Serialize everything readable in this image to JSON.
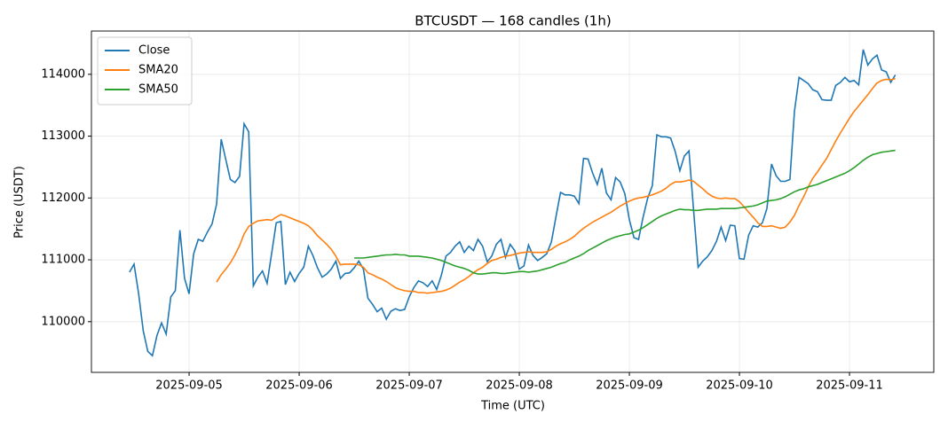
{
  "chart_data": {
    "type": "line",
    "title": "BTCUSDT — 168 candles (1h)",
    "x_label": "Time (UTC)",
    "y_label": "Price (USDT)",
    "grid": true,
    "legend": "upper left",
    "x": [
      "2025-09-04 11:00",
      "2025-09-04 12:00",
      "2025-09-04 13:00",
      "2025-09-04 14:00",
      "2025-09-04 15:00",
      "2025-09-04 16:00",
      "2025-09-04 17:00",
      "2025-09-04 18:00",
      "2025-09-04 19:00",
      "2025-09-04 20:00",
      "2025-09-04 21:00",
      "2025-09-04 22:00",
      "2025-09-04 23:00",
      "2025-09-05 00:00",
      "2025-09-05 01:00",
      "2025-09-05 02:00",
      "2025-09-05 03:00",
      "2025-09-05 04:00",
      "2025-09-05 05:00",
      "2025-09-05 06:00",
      "2025-09-05 07:00",
      "2025-09-05 08:00",
      "2025-09-05 09:00",
      "2025-09-05 10:00",
      "2025-09-05 11:00",
      "2025-09-05 12:00",
      "2025-09-05 13:00",
      "2025-09-05 14:00",
      "2025-09-05 15:00",
      "2025-09-05 16:00",
      "2025-09-05 17:00",
      "2025-09-05 18:00",
      "2025-09-05 19:00",
      "2025-09-05 20:00",
      "2025-09-05 21:00",
      "2025-09-05 22:00",
      "2025-09-05 23:00",
      "2025-09-06 00:00",
      "2025-09-06 01:00",
      "2025-09-06 02:00",
      "2025-09-06 03:00",
      "2025-09-06 04:00",
      "2025-09-06 05:00",
      "2025-09-06 06:00",
      "2025-09-06 07:00",
      "2025-09-06 08:00",
      "2025-09-06 09:00",
      "2025-09-06 10:00",
      "2025-09-06 11:00",
      "2025-09-06 12:00",
      "2025-09-06 13:00",
      "2025-09-06 14:00",
      "2025-09-06 15:00",
      "2025-09-06 16:00",
      "2025-09-06 17:00",
      "2025-09-06 18:00",
      "2025-09-06 19:00",
      "2025-09-06 20:00",
      "2025-09-06 21:00",
      "2025-09-06 22:00",
      "2025-09-06 23:00",
      "2025-09-07 00:00",
      "2025-09-07 01:00",
      "2025-09-07 02:00",
      "2025-09-07 03:00",
      "2025-09-07 04:00",
      "2025-09-07 05:00",
      "2025-09-07 06:00",
      "2025-09-07 07:00",
      "2025-09-07 08:00",
      "2025-09-07 09:00",
      "2025-09-07 10:00",
      "2025-09-07 11:00",
      "2025-09-07 12:00",
      "2025-09-07 13:00",
      "2025-09-07 14:00",
      "2025-09-07 15:00",
      "2025-09-07 16:00",
      "2025-09-07 17:00",
      "2025-09-07 18:00",
      "2025-09-07 19:00",
      "2025-09-07 20:00",
      "2025-09-07 21:00",
      "2025-09-07 22:00",
      "2025-09-07 23:00",
      "2025-09-08 00:00",
      "2025-09-08 01:00",
      "2025-09-08 02:00",
      "2025-09-08 03:00",
      "2025-09-08 04:00",
      "2025-09-08 05:00",
      "2025-09-08 06:00",
      "2025-09-08 07:00",
      "2025-09-08 08:00",
      "2025-09-08 09:00",
      "2025-09-08 10:00",
      "2025-09-08 11:00",
      "2025-09-08 12:00",
      "2025-09-08 13:00",
      "2025-09-08 14:00",
      "2025-09-08 15:00",
      "2025-09-08 16:00",
      "2025-09-08 17:00",
      "2025-09-08 18:00",
      "2025-09-08 19:00",
      "2025-09-08 20:00",
      "2025-09-08 21:00",
      "2025-09-08 22:00",
      "2025-09-08 23:00",
      "2025-09-09 00:00",
      "2025-09-09 01:00",
      "2025-09-09 02:00",
      "2025-09-09 03:00",
      "2025-09-09 04:00",
      "2025-09-09 05:00",
      "2025-09-09 06:00",
      "2025-09-09 07:00",
      "2025-09-09 08:00",
      "2025-09-09 09:00",
      "2025-09-09 10:00",
      "2025-09-09 11:00",
      "2025-09-09 12:00",
      "2025-09-09 13:00",
      "2025-09-09 14:00",
      "2025-09-09 15:00",
      "2025-09-09 16:00",
      "2025-09-09 17:00",
      "2025-09-09 18:00",
      "2025-09-09 19:00",
      "2025-09-09 20:00",
      "2025-09-09 21:00",
      "2025-09-09 22:00",
      "2025-09-09 23:00",
      "2025-09-10 00:00",
      "2025-09-10 01:00",
      "2025-09-10 02:00",
      "2025-09-10 03:00",
      "2025-09-10 04:00",
      "2025-09-10 05:00",
      "2025-09-10 06:00",
      "2025-09-10 07:00",
      "2025-09-10 08:00",
      "2025-09-10 09:00",
      "2025-09-10 10:00",
      "2025-09-10 11:00",
      "2025-09-10 12:00",
      "2025-09-10 13:00",
      "2025-09-10 14:00",
      "2025-09-10 15:00",
      "2025-09-10 16:00",
      "2025-09-10 17:00",
      "2025-09-10 18:00",
      "2025-09-10 19:00",
      "2025-09-10 20:00",
      "2025-09-10 21:00",
      "2025-09-10 22:00",
      "2025-09-10 23:00",
      "2025-09-11 00:00",
      "2025-09-11 01:00",
      "2025-09-11 02:00",
      "2025-09-11 03:00",
      "2025-09-11 04:00",
      "2025-09-11 05:00",
      "2025-09-11 06:00",
      "2025-09-11 07:00",
      "2025-09-11 08:00",
      "2025-09-11 09:00",
      "2025-09-11 10:00"
    ],
    "xlim": [
      "2025-09-04 02:42",
      "2025-09-11 18:23"
    ],
    "xticks": [
      {
        "value": "2025-09-05 00:00",
        "label": "2025-09-05"
      },
      {
        "value": "2025-09-06 00:00",
        "label": "2025-09-06"
      },
      {
        "value": "2025-09-07 00:00",
        "label": "2025-09-07"
      },
      {
        "value": "2025-09-08 00:00",
        "label": "2025-09-08"
      },
      {
        "value": "2025-09-09 00:00",
        "label": "2025-09-09"
      },
      {
        "value": "2025-09-10 00:00",
        "label": "2025-09-10"
      },
      {
        "value": "2025-09-11 00:00",
        "label": "2025-09-11"
      }
    ],
    "ylim": [
      109180,
      114700
    ],
    "yticks": [
      110000,
      111000,
      112000,
      113000,
      114000
    ],
    "series": [
      {
        "name": "Close",
        "color": "#1f77b4",
        "values": [
          110800,
          110930,
          110450,
          109850,
          109520,
          109450,
          109780,
          109980,
          109800,
          110400,
          110500,
          111480,
          110700,
          110450,
          111100,
          111330,
          111300,
          111450,
          111580,
          111900,
          112950,
          112620,
          112300,
          112250,
          112350,
          113200,
          113070,
          110580,
          110720,
          110820,
          110620,
          111100,
          111600,
          111620,
          110600,
          110800,
          110650,
          110780,
          110880,
          111220,
          111070,
          110870,
          110720,
          110770,
          110850,
          110980,
          110700,
          110780,
          110790,
          110870,
          110980,
          110850,
          110380,
          110280,
          110160,
          110220,
          110040,
          110170,
          110210,
          110180,
          110200,
          110400,
          110550,
          110660,
          110630,
          110570,
          110660,
          110520,
          110750,
          111060,
          111120,
          111220,
          111290,
          111120,
          111220,
          111150,
          111330,
          111220,
          110970,
          111060,
          111250,
          111330,
          111040,
          111250,
          111150,
          110850,
          110900,
          111240,
          111070,
          110990,
          111040,
          111100,
          111290,
          111700,
          112090,
          112050,
          112050,
          112030,
          111910,
          112640,
          112630,
          112400,
          112220,
          112480,
          112080,
          111970,
          112330,
          112260,
          112070,
          111650,
          111360,
          111330,
          111690,
          112000,
          112200,
          113020,
          112990,
          112990,
          112970,
          112750,
          112440,
          112680,
          112760,
          111800,
          110880,
          110980,
          111050,
          111150,
          111300,
          111530,
          111310,
          111560,
          111550,
          111020,
          111010,
          111400,
          111550,
          111530,
          111600,
          111830,
          112550,
          112360,
          112270,
          112270,
          112300,
          113400,
          113950,
          113900,
          113850,
          113750,
          113720,
          113590,
          113580,
          113580,
          113820,
          113870,
          113950,
          113880,
          113900,
          113830,
          114400,
          114150,
          114250,
          114310,
          114070,
          114040,
          113870,
          113990
        ]
      },
      {
        "name": "SMA20",
        "color": "#ff7f0e",
        "values": [
          null,
          null,
          null,
          null,
          null,
          null,
          null,
          null,
          null,
          null,
          null,
          null,
          null,
          null,
          null,
          null,
          null,
          null,
          null,
          110640,
          110760,
          110850,
          110950,
          111080,
          111230,
          111420,
          111540,
          111590,
          111630,
          111640,
          111650,
          111640,
          111690,
          111730,
          111710,
          111680,
          111650,
          111620,
          111590,
          111550,
          111480,
          111390,
          111320,
          111250,
          111170,
          111060,
          110920,
          110930,
          110930,
          110930,
          110920,
          110880,
          110790,
          110760,
          110720,
          110690,
          110650,
          110600,
          110550,
          110520,
          110500,
          110490,
          110490,
          110470,
          110470,
          110460,
          110470,
          110480,
          110490,
          110510,
          110540,
          110590,
          110640,
          110680,
          110730,
          110790,
          110840,
          110880,
          110940,
          110990,
          111010,
          111040,
          111060,
          111070,
          111090,
          111110,
          111120,
          111130,
          111120,
          111120,
          111120,
          111130,
          111170,
          111220,
          111260,
          111290,
          111330,
          111380,
          111450,
          111510,
          111560,
          111610,
          111650,
          111690,
          111730,
          111770,
          111820,
          111870,
          111910,
          111950,
          111980,
          112000,
          112010,
          112030,
          112050,
          112080,
          112110,
          112160,
          112220,
          112260,
          112260,
          112270,
          112290,
          112270,
          112210,
          112150,
          112080,
          112030,
          112000,
          111990,
          112000,
          111990,
          111990,
          111940,
          111860,
          111770,
          111690,
          111600,
          111540,
          111540,
          111550,
          111530,
          111510,
          111530,
          111610,
          111720,
          111880,
          112020,
          112180,
          112320,
          112420,
          112530,
          112640,
          112780,
          112920,
          113050,
          113170,
          113290,
          113400,
          113490,
          113580,
          113670,
          113770,
          113860,
          113900,
          113920,
          113910,
          113930
        ]
      },
      {
        "name": "SMA50",
        "color": "#2ca02c",
        "values": [
          null,
          null,
          null,
          null,
          null,
          null,
          null,
          null,
          null,
          null,
          null,
          null,
          null,
          null,
          null,
          null,
          null,
          null,
          null,
          null,
          null,
          null,
          null,
          null,
          null,
          null,
          null,
          null,
          null,
          null,
          null,
          null,
          null,
          null,
          null,
          null,
          null,
          null,
          null,
          null,
          null,
          null,
          null,
          null,
          null,
          null,
          null,
          null,
          null,
          111030,
          111030,
          111030,
          111040,
          111050,
          111060,
          111070,
          111080,
          111080,
          111090,
          111080,
          111080,
          111060,
          111060,
          111060,
          111050,
          111040,
          111030,
          111010,
          110990,
          110960,
          110930,
          110900,
          110880,
          110860,
          110830,
          110790,
          110770,
          110770,
          110780,
          110790,
          110790,
          110780,
          110780,
          110790,
          110800,
          110810,
          110810,
          110800,
          110810,
          110820,
          110840,
          110860,
          110880,
          110910,
          110940,
          110960,
          111000,
          111030,
          111060,
          111100,
          111150,
          111190,
          111230,
          111270,
          111310,
          111340,
          111370,
          111390,
          111410,
          111420,
          111450,
          111480,
          111520,
          111570,
          111620,
          111670,
          111710,
          111740,
          111770,
          111800,
          111820,
          111810,
          111810,
          111800,
          111800,
          111810,
          111820,
          111820,
          111820,
          111830,
          111830,
          111830,
          111830,
          111840,
          111850,
          111860,
          111870,
          111890,
          111920,
          111950,
          111960,
          111970,
          111990,
          112020,
          112060,
          112100,
          112130,
          112150,
          112180,
          112200,
          112220,
          112250,
          112280,
          112310,
          112340,
          112370,
          112400,
          112440,
          112490,
          112550,
          112610,
          112660,
          112700,
          112720,
          112740,
          112750,
          112760,
          112770
        ]
      }
    ]
  }
}
